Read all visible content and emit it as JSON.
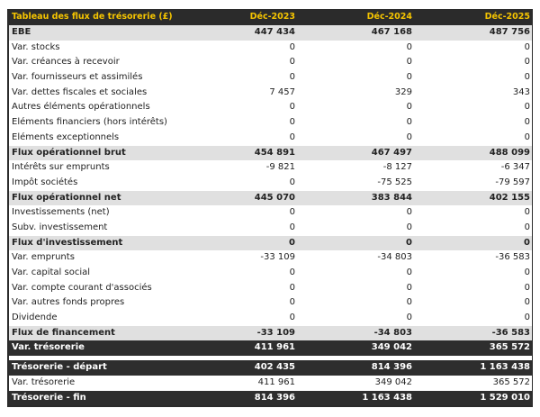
{
  "header": {
    "title": "Tableau des flux de trésorerie (£)",
    "columns": [
      "Déc-2023",
      "Déc-2024",
      "Déc-2025"
    ]
  },
  "rows": [
    {
      "label": "EBE",
      "values": [
        "447 434",
        "467 168",
        "487 756"
      ],
      "style": "sub"
    },
    {
      "label": "Var. stocks",
      "values": [
        "0",
        "0",
        "0"
      ],
      "style": ""
    },
    {
      "label": "Var. créances à recevoir",
      "values": [
        "0",
        "0",
        "0"
      ],
      "style": ""
    },
    {
      "label": "Var. fournisseurs et assimilés",
      "values": [
        "0",
        "0",
        "0"
      ],
      "style": ""
    },
    {
      "label": "Var. dettes fiscales et sociales",
      "values": [
        "7 457",
        "329",
        "343"
      ],
      "style": ""
    },
    {
      "label": "Autres éléments opérationnels",
      "values": [
        "0",
        "0",
        "0"
      ],
      "style": ""
    },
    {
      "label": "Eléments financiers (hors intérêts)",
      "values": [
        "0",
        "0",
        "0"
      ],
      "style": ""
    },
    {
      "label": "Eléments exceptionnels",
      "values": [
        "0",
        "0",
        "0"
      ],
      "style": ""
    },
    {
      "label": "Flux opérationnel brut",
      "values": [
        "454 891",
        "467 497",
        "488 099"
      ],
      "style": "sub"
    },
    {
      "label": "Intérêts sur emprunts",
      "values": [
        "-9 821",
        "-8 127",
        "-6 347"
      ],
      "style": ""
    },
    {
      "label": "Impôt sociétés",
      "values": [
        "0",
        "-75 525",
        "-79 597"
      ],
      "style": ""
    },
    {
      "label": "Flux opérationnel net",
      "values": [
        "445 070",
        "383 844",
        "402 155"
      ],
      "style": "sub"
    },
    {
      "label": "Investissements (net)",
      "values": [
        "0",
        "0",
        "0"
      ],
      "style": ""
    },
    {
      "label": "Subv. investissement",
      "values": [
        "0",
        "0",
        "0"
      ],
      "style": ""
    },
    {
      "label": "Flux d'investissement",
      "values": [
        "0",
        "0",
        "0"
      ],
      "style": "sub"
    },
    {
      "label": "Var. emprunts",
      "values": [
        "-33 109",
        "-34 803",
        "-36 583"
      ],
      "style": ""
    },
    {
      "label": "Var. capital social",
      "values": [
        "0",
        "0",
        "0"
      ],
      "style": ""
    },
    {
      "label": "Var. compte courant d'associés",
      "values": [
        "0",
        "0",
        "0"
      ],
      "style": ""
    },
    {
      "label": "Var. autres fonds propres",
      "values": [
        "0",
        "0",
        "0"
      ],
      "style": ""
    },
    {
      "label": "Dividende",
      "values": [
        "0",
        "0",
        "0"
      ],
      "style": ""
    },
    {
      "label": "Flux de financement",
      "values": [
        "-33 109",
        "-34 803",
        "-36 583"
      ],
      "style": "sub"
    },
    {
      "label": "Var. trésorerie",
      "values": [
        "411 961",
        "349 042",
        "365 572"
      ],
      "style": "dark"
    }
  ],
  "summary": [
    {
      "label": "Trésorerie - départ",
      "values": [
        "402 435",
        "814 396",
        "1 163 438"
      ],
      "style": "dark"
    },
    {
      "label": "Var. trésorerie",
      "values": [
        "411 961",
        "349 042",
        "365 572"
      ],
      "style": ""
    },
    {
      "label": "Trésorerie - fin",
      "values": [
        "814 396",
        "1 163 438",
        "1 529 010"
      ],
      "style": "dark"
    }
  ],
  "colors": {
    "header_bg": "#2b2b2b",
    "header_text": "#f5c400",
    "subtotal_bg": "#e0e0e0",
    "total_bg": "#2e2e2e"
  }
}
